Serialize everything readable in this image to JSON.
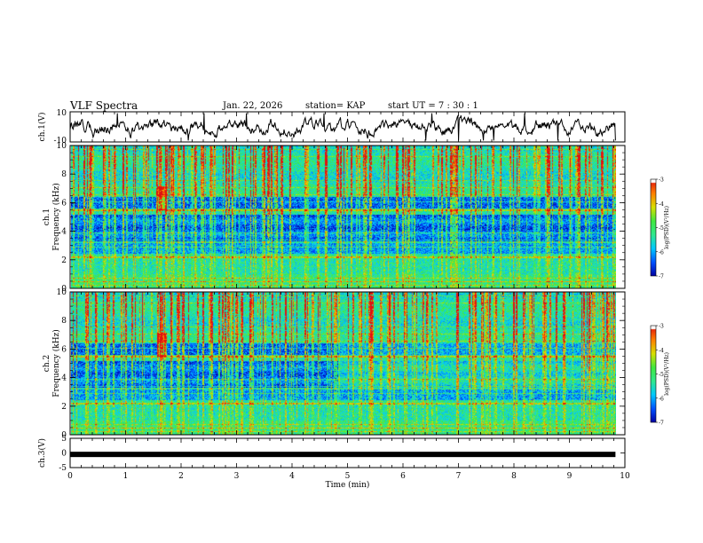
{
  "header": {
    "title": "VLF Spectra",
    "date": "Jan. 22, 2026",
    "station": "station= KAP",
    "start_ut": "start  UT =   7 : 30 : 1"
  },
  "colors": {
    "trace": "#000000",
    "colormap": [
      "#0000a0",
      "#0050ff",
      "#00c8ff",
      "#30e890",
      "#40e840",
      "#d8e000",
      "#ff8000",
      "#e01010",
      "#ffffff"
    ]
  },
  "chart_data": [
    {
      "type": "line",
      "name": "ch1-voltage-trace",
      "ylabel": "ch.1(V)",
      "ylim": [
        -10,
        10
      ],
      "y_ticks": [
        "10",
        "-10"
      ],
      "xlim": [
        0,
        10
      ],
      "description_series": "bursty voltage trace between about -8 and +8 V"
    },
    {
      "type": "heatmap",
      "name": "ch1-spectrogram",
      "ylabel": "ch.1\nFrequency  (kHz)",
      "ylim": [
        0,
        10
      ],
      "y_ticks": [
        "0",
        "2",
        "4",
        "6",
        "8",
        "10"
      ],
      "xlim": [
        0,
        10
      ],
      "colorbar": {
        "label": "log(PSD)(V²/Hz)",
        "range": [
          -7,
          -3
        ],
        "ticks": [
          "-3",
          "-4",
          "-5",
          "-6",
          "-7"
        ]
      }
    },
    {
      "type": "heatmap",
      "name": "ch2-spectrogram",
      "ylabel": "ch.2\nFrequency  (kHz)",
      "ylim": [
        0,
        10
      ],
      "y_ticks": [
        "0",
        "2",
        "4",
        "6",
        "8",
        "10"
      ],
      "xlim": [
        0,
        10
      ],
      "colorbar": {
        "label": "log(PSD)(V²/Hz)",
        "range": [
          -7,
          -3
        ],
        "ticks": [
          "-3",
          "-4",
          "-5",
          "-6",
          "-7"
        ]
      }
    },
    {
      "type": "line",
      "name": "ch3-voltage-trace",
      "ylabel": "ch.3(V)",
      "ylim": [
        -5,
        5
      ],
      "y_ticks": [
        "5",
        "0",
        "-5"
      ],
      "xlim": [
        0,
        10
      ],
      "x_ticks": [
        "0",
        "1",
        "2",
        "3",
        "4",
        "5",
        "6",
        "7",
        "8",
        "9",
        "10"
      ],
      "xlabel": "Time  (min)",
      "data_xmax": 9.83,
      "constant_value": -0.5
    }
  ]
}
